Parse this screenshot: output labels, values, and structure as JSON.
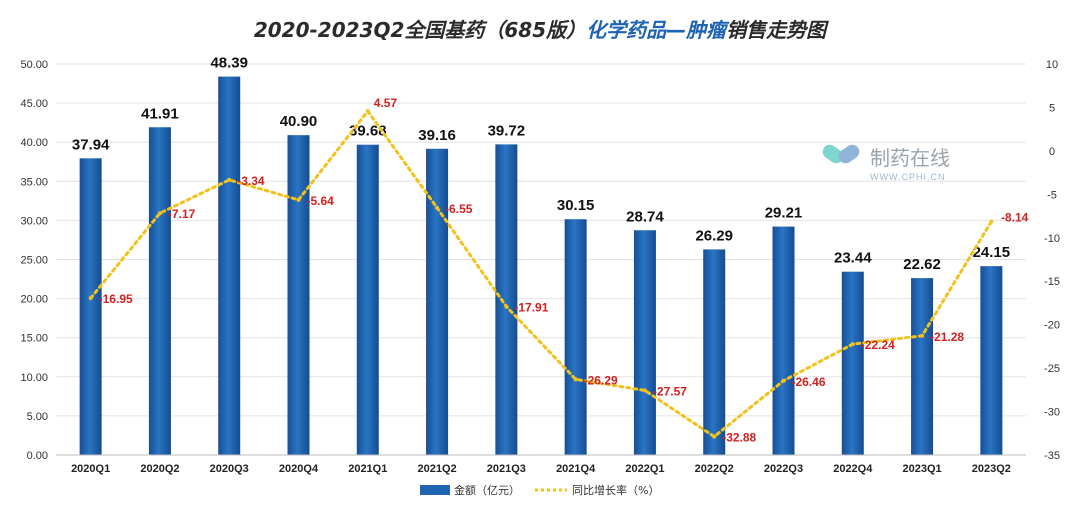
{
  "chart_data": {
    "type": "bar+line",
    "title_prefix": "2020-2023Q2全国基药（685版）",
    "title_accent": "化学药品—肿瘤",
    "title_suffix": "销售走势图",
    "categories": [
      "2020Q1",
      "2020Q2",
      "2020Q3",
      "2020Q4",
      "2021Q1",
      "2021Q2",
      "2021Q3",
      "2021Q4",
      "2022Q1",
      "2022Q2",
      "2022Q3",
      "2022Q4",
      "2023Q1",
      "2023Q2"
    ],
    "series": [
      {
        "name": "金额（亿元）",
        "type": "bar",
        "axis": "left",
        "color": "#1f63b3",
        "values": [
          37.94,
          41.91,
          48.39,
          40.9,
          39.68,
          39.16,
          39.72,
          30.15,
          28.74,
          26.29,
          29.21,
          23.44,
          22.62,
          24.15
        ],
        "labels": [
          "37.94",
          "41.91",
          "48.39",
          "40.90",
          "39.68",
          "39.16",
          "39.72",
          "30.15",
          "28.74",
          "26.29",
          "29.21",
          "23.44",
          "22.62",
          "24.15"
        ]
      },
      {
        "name": "同比增长率（%）",
        "type": "line",
        "axis": "right",
        "color": "#f2c21b",
        "label_color": "#d42020",
        "values": [
          -16.95,
          -7.17,
          -3.34,
          -5.64,
          4.57,
          -6.55,
          -17.91,
          -26.29,
          -27.57,
          -32.88,
          -26.46,
          -22.24,
          -21.28,
          -8.14
        ],
        "labels": [
          "-16.95",
          "-7.17",
          "-3.34",
          "-5.64",
          "4.57",
          "-6.55",
          "-17.91",
          "-26.29",
          "-27.57",
          "-32.88",
          "-26.46",
          "-22.24",
          "-21.28",
          "-8.14"
        ]
      }
    ],
    "y_left": {
      "min": 0,
      "max": 50,
      "step": 5,
      "tick_labels": [
        "0.00",
        "5.00",
        "10.00",
        "15.00",
        "20.00",
        "25.00",
        "30.00",
        "35.00",
        "40.00",
        "45.00",
        "50.00"
      ]
    },
    "y_right": {
      "min": -35,
      "max": 10,
      "step": 5,
      "tick_labels": [
        "-35",
        "-30",
        "-25",
        "-20",
        "-15",
        "-10",
        "-5",
        "0",
        "5",
        "10"
      ]
    },
    "grid": true,
    "legend_position": "bottom"
  },
  "watermark": {
    "name": "制药在线",
    "url": "WWW.CPHI.CN"
  }
}
